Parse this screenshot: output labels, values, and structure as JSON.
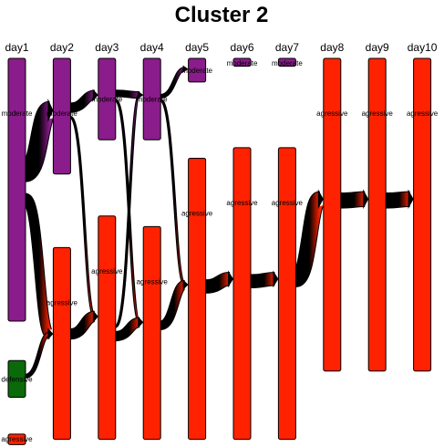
{
  "chart_data": {
    "type": "sankey",
    "title": "Cluster 2",
    "days": [
      "day1",
      "day2",
      "day3",
      "day4",
      "day5",
      "day6",
      "day7",
      "day8",
      "day9",
      "day10"
    ],
    "state_colors": {
      "moderate": "#8b1c8b",
      "agressive": "#ff2200",
      "defensive": "#0a6a0a"
    },
    "nodes": [
      {
        "id": "d1-mod",
        "day": 0,
        "state": "moderate",
        "label": "moderate",
        "start": 0,
        "size": 100
      },
      {
        "id": "d1-def",
        "day": 0,
        "state": "defensive",
        "label": "defensive",
        "start": 115,
        "size": 14
      },
      {
        "id": "d1-agr",
        "day": 0,
        "state": "agressive",
        "label": "agressive",
        "start": 143,
        "size": 4
      },
      {
        "id": "d2-mod",
        "day": 1,
        "state": "moderate",
        "label": "moderate",
        "start": 0,
        "size": 44
      },
      {
        "id": "d2-agr",
        "day": 1,
        "state": "agressive",
        "label": "agressive",
        "start": 72,
        "size": 73
      },
      {
        "id": "d3-mod",
        "day": 2,
        "state": "moderate",
        "label": "moderate",
        "start": 0,
        "size": 31
      },
      {
        "id": "d3-agr",
        "day": 2,
        "state": "agressive",
        "label": "agressive",
        "start": 60,
        "size": 85
      },
      {
        "id": "d4-mod",
        "day": 3,
        "state": "moderate",
        "label": "moderate",
        "start": 0,
        "size": 31
      },
      {
        "id": "d4-agr",
        "day": 3,
        "state": "agressive",
        "label": "agressive",
        "start": 64,
        "size": 81
      },
      {
        "id": "d5-mod",
        "day": 4,
        "state": "moderate",
        "label": "moderate",
        "start": 0,
        "size": 9
      },
      {
        "id": "d5-agr",
        "day": 4,
        "state": "agressive",
        "label": "agressive",
        "start": 38,
        "size": 107
      },
      {
        "id": "d6-mod",
        "day": 5,
        "state": "moderate",
        "label": "moderate",
        "start": 0,
        "size": 3
      },
      {
        "id": "d6-agr",
        "day": 5,
        "state": "agressive",
        "label": "agressive",
        "start": 34,
        "size": 111
      },
      {
        "id": "d7-mod",
        "day": 6,
        "state": "moderate",
        "label": "moderate",
        "start": 0,
        "size": 3
      },
      {
        "id": "d7-agr",
        "day": 6,
        "state": "agressive",
        "label": "agressive",
        "start": 34,
        "size": 111
      },
      {
        "id": "d8-agr",
        "day": 7,
        "state": "agressive",
        "label": "agressive",
        "start": 0,
        "size": 119
      },
      {
        "id": "d9-agr",
        "day": 8,
        "state": "agressive",
        "label": "agressive",
        "start": 0,
        "size": 119
      },
      {
        "id": "d10-agr",
        "day": 9,
        "state": "agressive",
        "label": "agressive",
        "start": 0,
        "size": 119
      }
    ],
    "links": [
      {
        "from": "d1-mod",
        "to": "d2-mod",
        "value": 36
      },
      {
        "from": "d1-mod",
        "to": "d2-agr",
        "value": 18
      },
      {
        "from": "d1-def",
        "to": "d2-agr",
        "value": 6
      },
      {
        "from": "d2-mod",
        "to": "d3-mod",
        "value": 18
      },
      {
        "from": "d2-mod",
        "to": "d3-agr",
        "value": 1
      },
      {
        "from": "d2-agr",
        "to": "d3-agr",
        "value": 20
      },
      {
        "from": "d3-mod",
        "to": "d4-mod",
        "value": 12
      },
      {
        "from": "d3-mod",
        "to": "d4-agr",
        "value": 1
      },
      {
        "from": "d3-agr",
        "to": "d4-mod",
        "value": 1
      },
      {
        "from": "d3-agr",
        "to": "d4-agr",
        "value": 18
      },
      {
        "from": "d4-mod",
        "to": "d5-mod",
        "value": 6
      },
      {
        "from": "d4-mod",
        "to": "d5-agr",
        "value": 2
      },
      {
        "from": "d4-agr",
        "to": "d5-agr",
        "value": 16
      },
      {
        "from": "d5-agr",
        "to": "d6-agr",
        "value": 26
      },
      {
        "from": "d6-agr",
        "to": "d7-agr",
        "value": 26
      },
      {
        "from": "d7-agr",
        "to": "d8-agr",
        "value": 30
      },
      {
        "from": "d8-agr",
        "to": "d9-agr",
        "value": 30
      },
      {
        "from": "d9-agr",
        "to": "d10-agr",
        "value": 30
      }
    ]
  }
}
